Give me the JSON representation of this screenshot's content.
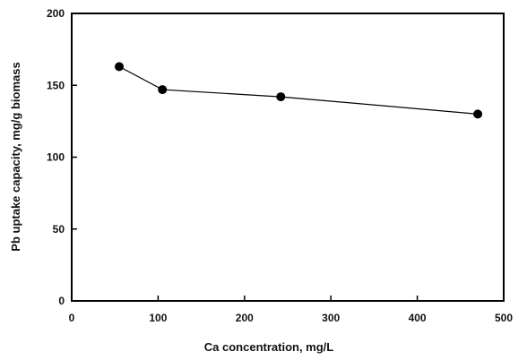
{
  "chart_data": {
    "type": "line",
    "title": "",
    "xlabel": "Ca concentration,  mg/L",
    "ylabel": "Pb uptake capacity,  mg/g biomass",
    "xlim": [
      0,
      500
    ],
    "ylim": [
      0,
      200
    ],
    "xticks": [
      0,
      100,
      200,
      300,
      400,
      500
    ],
    "yticks": [
      0,
      50,
      100,
      150,
      200
    ],
    "grid": false,
    "legend": "none",
    "series": [
      {
        "color": "#000000",
        "marker": "circle",
        "points": [
          {
            "x": 55,
            "y": 163
          },
          {
            "x": 105,
            "y": 147
          },
          {
            "x": 242,
            "y": 142
          },
          {
            "x": 470,
            "y": 130
          }
        ]
      }
    ]
  }
}
